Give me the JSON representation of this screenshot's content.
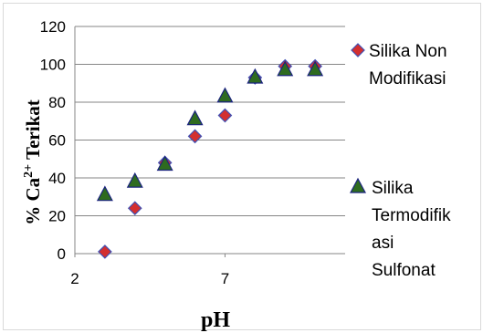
{
  "chart_data": {
    "type": "scatter",
    "xlabel": "pH",
    "ylabel": {
      "prefix": "% Ca",
      "sup": "2+",
      "suffix": " Terikat"
    },
    "xlim": [
      2,
      11
    ],
    "ylim": [
      0,
      120
    ],
    "xticks": [
      2,
      7
    ],
    "yticks": [
      0,
      20,
      40,
      60,
      80,
      100,
      120
    ],
    "grid": {
      "horizontal": true,
      "vertical": false
    },
    "legend_position": "right",
    "series": [
      {
        "name": "Silika Non Modifikasi",
        "legend_lines": [
          "Silika Non",
          "Modifikasi"
        ],
        "marker": "diamond",
        "color": "#d32f2f",
        "stroke": "#3f51b5",
        "x": [
          3,
          4,
          5,
          6,
          7,
          8,
          9,
          10
        ],
        "y": [
          1,
          24,
          48,
          62,
          73,
          93,
          99,
          99
        ]
      },
      {
        "name": "Silika Termodifikasi Sulfonat",
        "legend_lines": [
          "Silika",
          "Termodifik",
          "asi",
          "Sulfonat"
        ],
        "marker": "triangle",
        "color": "#2e6b1f",
        "stroke": "#1a237e",
        "x": [
          3,
          4,
          5,
          6,
          7,
          8,
          9,
          10
        ],
        "y": [
          31,
          38,
          47,
          71,
          83,
          93,
          97,
          97
        ]
      }
    ]
  }
}
